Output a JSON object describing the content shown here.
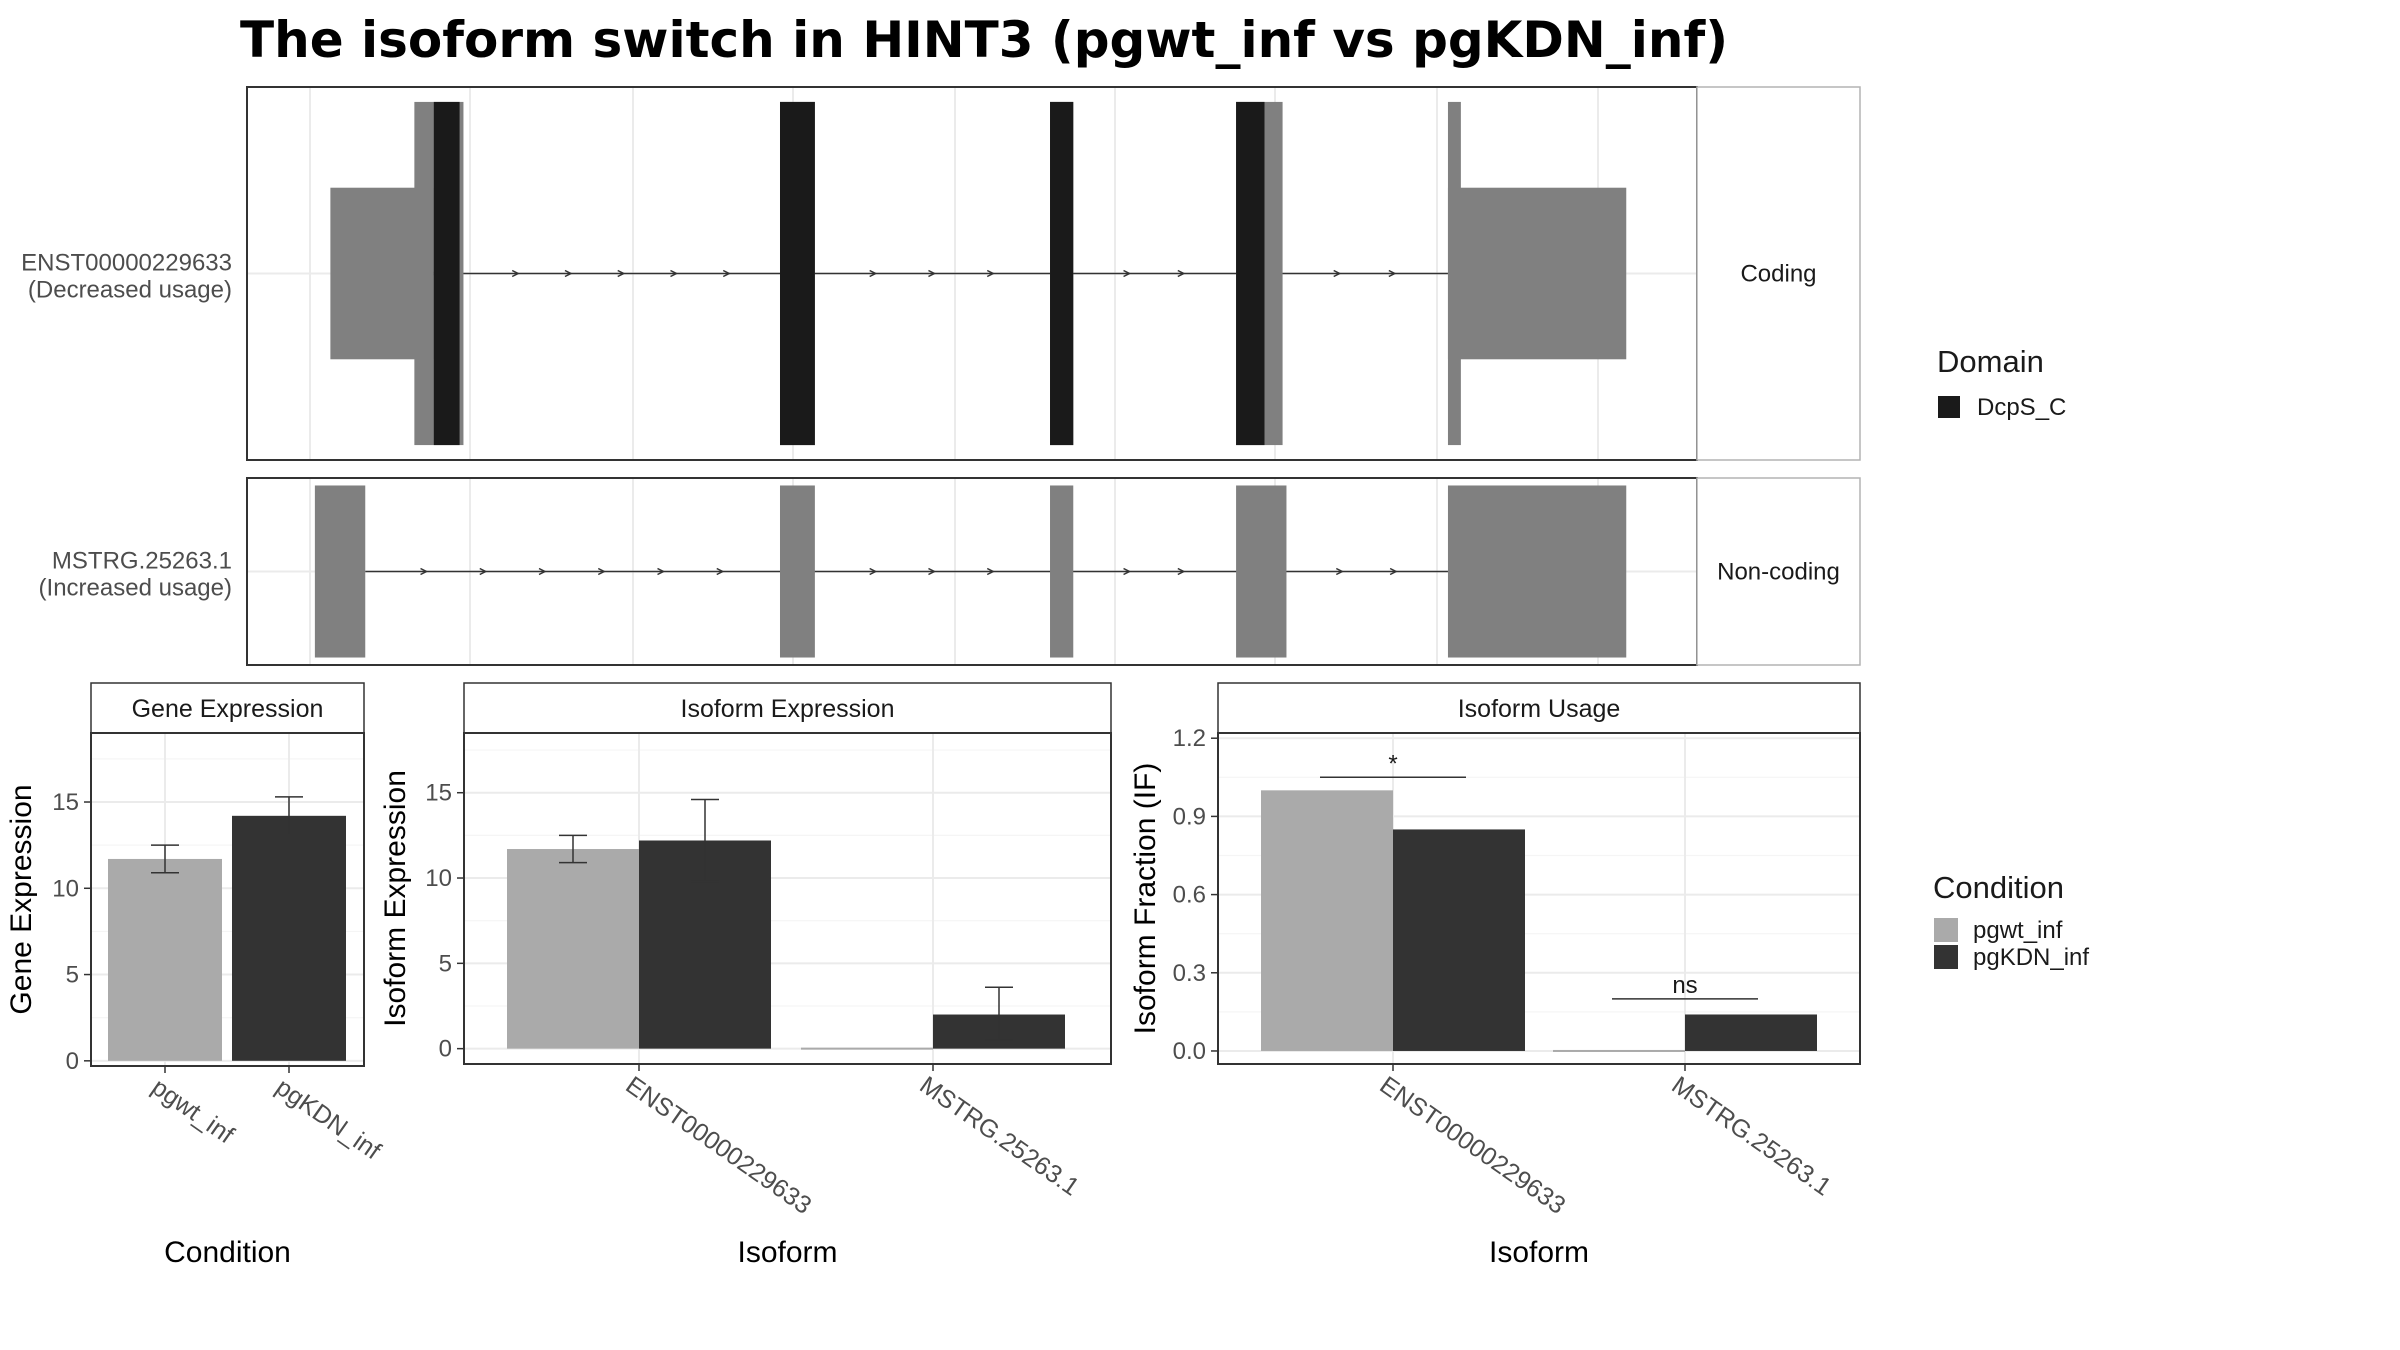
{
  "chart_data": {
    "type": "composite",
    "title": "The isoform switch in HINT3 (pgwt_inf vs pgKDN_inf)",
    "colors": {
      "pgwt_inf": "#aaaaaa",
      "pgKDN_inf": "#333333",
      "domain": "#1a1a1a",
      "exon": "#808080"
    },
    "isoform_structure": {
      "type": "gene-structure",
      "gene_range": [
        0,
        1000
      ],
      "domain_legend": {
        "title": "Domain",
        "items": [
          "DcpS_C"
        ]
      },
      "transcripts": [
        {
          "label_id": "ENST00000229633",
          "label_usage": "(Decreased usage)",
          "facet": "Coding",
          "exons": [
            {
              "start": 15,
              "end": 95,
              "kind": "utr"
            },
            {
              "start": 95,
              "end": 118,
              "kind": "cds"
            },
            {
              "start": 363,
              "end": 390,
              "kind": "cds"
            },
            {
              "start": 572,
              "end": 590,
              "kind": "cds"
            },
            {
              "start": 716,
              "end": 752,
              "kind": "cds"
            },
            {
              "start": 880,
              "end": 1018,
              "kind": "utr"
            }
          ],
          "domains": [
            {
              "start": 95,
              "end": 115
            },
            {
              "start": 363,
              "end": 390
            },
            {
              "start": 572,
              "end": 590
            },
            {
              "start": 716,
              "end": 738
            }
          ]
        },
        {
          "label_id": "MSTRG.25263.1",
          "label_usage": "(Increased usage)",
          "facet": "Non-coding",
          "exons": [
            {
              "start": 3,
              "end": 42,
              "kind": "nc"
            },
            {
              "start": 363,
              "end": 390,
              "kind": "nc"
            },
            {
              "start": 572,
              "end": 590,
              "kind": "nc"
            },
            {
              "start": 716,
              "end": 755,
              "kind": "nc"
            },
            {
              "start": 880,
              "end": 1018,
              "kind": "nc"
            }
          ],
          "domains": []
        }
      ]
    },
    "gene_expression": {
      "type": "bar",
      "title": "Gene Expression",
      "xlabel": "Condition",
      "ylabel": "Gene Expression",
      "categories": [
        "pgwt_inf",
        "pgKDN_inf"
      ],
      "values": [
        11.7,
        14.2
      ],
      "errors": [
        [
          10.9,
          12.5
        ],
        [
          13.1,
          15.3
        ]
      ],
      "ylim": [
        -0.3,
        19
      ],
      "yticks": [
        0,
        5,
        10,
        15
      ]
    },
    "isoform_expression": {
      "type": "bar",
      "title": "Isoform Expression",
      "xlabel": "Isoform",
      "ylabel": "Isoform Expression",
      "categories": [
        "ENST00000229633",
        "MSTRG.25263.1"
      ],
      "series": [
        {
          "name": "pgwt_inf",
          "values": [
            11.7,
            0
          ],
          "errors": [
            [
              10.9,
              12.5
            ],
            [
              0,
              0
            ]
          ]
        },
        {
          "name": "pgKDN_inf",
          "values": [
            12.2,
            2.0
          ],
          "errors": [
            [
              9.8,
              14.6
            ],
            [
              0.5,
              3.6
            ]
          ]
        }
      ],
      "ylim": [
        -0.9,
        18.5
      ],
      "yticks": [
        0,
        5,
        10,
        15
      ]
    },
    "isoform_usage": {
      "type": "bar",
      "title": "Isoform Usage",
      "xlabel": "Isoform",
      "ylabel": "Isoform Fraction (IF)",
      "categories": [
        "ENST00000229633",
        "MSTRG.25263.1"
      ],
      "series": [
        {
          "name": "pgwt_inf",
          "values": [
            1.0,
            0.0
          ]
        },
        {
          "name": "pgKDN_inf",
          "values": [
            0.85,
            0.14
          ]
        }
      ],
      "significance": [
        "*",
        "ns"
      ],
      "ylim": [
        -0.05,
        1.22
      ],
      "yticks": [
        0.0,
        0.3,
        0.6,
        0.9,
        1.2
      ],
      "ytick_labels": [
        "0.0",
        "0.3",
        "0.6",
        "0.9",
        "1.2"
      ]
    },
    "condition_legend": {
      "title": "Condition",
      "items": [
        "pgwt_inf",
        "pgKDN_inf"
      ],
      "position": "right"
    }
  }
}
